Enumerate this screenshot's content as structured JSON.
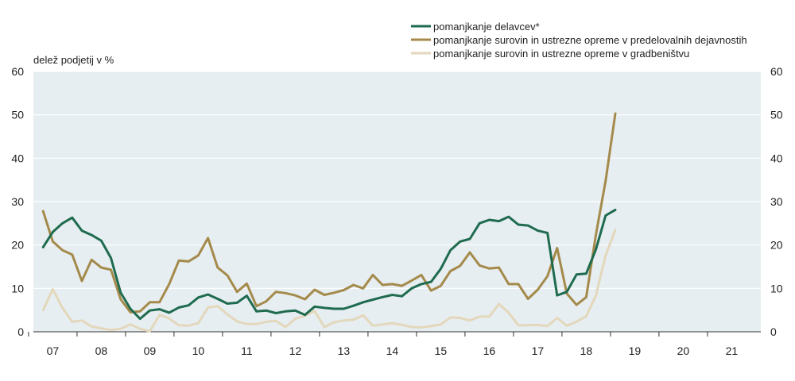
{
  "chart_data": {
    "type": "line",
    "ylabel": "delež podjetij v %",
    "ylim": [
      0,
      60
    ],
    "yticks": [
      0,
      10,
      20,
      30,
      40,
      50,
      60
    ],
    "xlim": [
      2006.6,
      2021.6
    ],
    "xticks": [
      {
        "x": 2007,
        "label": "07"
      },
      {
        "x": 2008,
        "label": "08"
      },
      {
        "x": 2009,
        "label": "09"
      },
      {
        "x": 2010,
        "label": "10"
      },
      {
        "x": 2011,
        "label": "11"
      },
      {
        "x": 2012,
        "label": "12"
      },
      {
        "x": 2013,
        "label": "13"
      },
      {
        "x": 2014,
        "label": "14"
      },
      {
        "x": 2015,
        "label": "15"
      },
      {
        "x": 2016,
        "label": "16"
      },
      {
        "x": 2017,
        "label": "17"
      },
      {
        "x": 2018,
        "label": "18"
      },
      {
        "x": 2019,
        "label": "19"
      },
      {
        "x": 2020,
        "label": "20"
      },
      {
        "x": 2021,
        "label": "21"
      }
    ],
    "grid": true,
    "plot_background": "#e7eef1",
    "legend_position": "top-right",
    "series": [
      {
        "name": "pomanjkanje delavcev*",
        "color": "#1f6b4f",
        "points": [
          [
            2006.8,
            19.5
          ],
          [
            2007.0,
            23
          ],
          [
            2007.2,
            25
          ],
          [
            2007.4,
            26.3
          ],
          [
            2007.6,
            23.3
          ],
          [
            2007.8,
            22.3
          ],
          [
            2008.0,
            21
          ],
          [
            2008.2,
            17
          ],
          [
            2008.4,
            9
          ],
          [
            2008.6,
            5.3
          ],
          [
            2008.8,
            3
          ],
          [
            2009.0,
            4.9
          ],
          [
            2009.2,
            5.2
          ],
          [
            2009.4,
            4.4
          ],
          [
            2009.6,
            5.6
          ],
          [
            2009.8,
            6.1
          ],
          [
            2010.0,
            7.9
          ],
          [
            2010.2,
            8.6
          ],
          [
            2010.4,
            7.6
          ],
          [
            2010.6,
            6.5
          ],
          [
            2010.8,
            6.7
          ],
          [
            2011.0,
            8.3
          ],
          [
            2011.2,
            4.7
          ],
          [
            2011.4,
            4.9
          ],
          [
            2011.6,
            4.3
          ],
          [
            2011.8,
            4.7
          ],
          [
            2012.0,
            4.9
          ],
          [
            2012.2,
            3.9
          ],
          [
            2012.4,
            5.8
          ],
          [
            2012.6,
            5.5
          ],
          [
            2012.8,
            5.3
          ],
          [
            2013.0,
            5.3
          ],
          [
            2013.2,
            6
          ],
          [
            2013.4,
            6.8
          ],
          [
            2013.6,
            7.4
          ],
          [
            2013.8,
            8
          ],
          [
            2014.0,
            8.5
          ],
          [
            2014.2,
            8.2
          ],
          [
            2014.4,
            10
          ],
          [
            2014.6,
            11
          ],
          [
            2014.8,
            11.5
          ],
          [
            2015.0,
            14.5
          ],
          [
            2015.2,
            18.8
          ],
          [
            2015.4,
            20.8
          ],
          [
            2015.6,
            21.4
          ],
          [
            2015.8,
            25
          ],
          [
            2016.0,
            25.8
          ],
          [
            2016.2,
            25.5
          ],
          [
            2016.4,
            26.5
          ],
          [
            2016.6,
            24.7
          ],
          [
            2016.8,
            24.5
          ],
          [
            2017.0,
            23.3
          ],
          [
            2017.2,
            22.8
          ],
          [
            2017.4,
            8.4
          ],
          [
            2017.6,
            9.2
          ],
          [
            2017.8,
            13.2
          ],
          [
            2018.0,
            13.4
          ],
          [
            2018.2,
            19
          ],
          [
            2018.4,
            26.8
          ],
          [
            2018.6,
            28.1
          ]
        ]
      },
      {
        "name": "pomanjkanje surovin in ustrezne opreme v predelovalnih dejavnostih",
        "color": "#a48a4b",
        "points": [
          [
            2006.8,
            27.8
          ],
          [
            2007.0,
            20.8
          ],
          [
            2007.2,
            18.8
          ],
          [
            2007.4,
            17.8
          ],
          [
            2007.6,
            11.7
          ],
          [
            2007.8,
            16.6
          ],
          [
            2008.0,
            14.8
          ],
          [
            2008.2,
            14.3
          ],
          [
            2008.4,
            7.5
          ],
          [
            2008.6,
            4.5
          ],
          [
            2008.8,
            4.7
          ],
          [
            2009.0,
            6.8
          ],
          [
            2009.2,
            6.8
          ],
          [
            2009.4,
            11
          ],
          [
            2009.6,
            16.4
          ],
          [
            2009.8,
            16.2
          ],
          [
            2010.0,
            17.6
          ],
          [
            2010.2,
            21.6
          ],
          [
            2010.4,
            14.8
          ],
          [
            2010.6,
            13
          ],
          [
            2010.8,
            9.2
          ],
          [
            2011.0,
            11.1
          ],
          [
            2011.2,
            5.9
          ],
          [
            2011.4,
            7
          ],
          [
            2011.6,
            9.2
          ],
          [
            2011.8,
            8.9
          ],
          [
            2012.0,
            8.4
          ],
          [
            2012.2,
            7.5
          ],
          [
            2012.4,
            9.7
          ],
          [
            2012.6,
            8.5
          ],
          [
            2012.8,
            9
          ],
          [
            2013.0,
            9.6
          ],
          [
            2013.2,
            10.8
          ],
          [
            2013.4,
            10
          ],
          [
            2013.6,
            13.1
          ],
          [
            2013.8,
            10.8
          ],
          [
            2014.0,
            11
          ],
          [
            2014.2,
            10.6
          ],
          [
            2014.4,
            11.8
          ],
          [
            2014.6,
            13.1
          ],
          [
            2014.8,
            9.5
          ],
          [
            2015.0,
            10.6
          ],
          [
            2015.2,
            14
          ],
          [
            2015.4,
            15.2
          ],
          [
            2015.6,
            18.3
          ],
          [
            2015.8,
            15.3
          ],
          [
            2016.0,
            14.6
          ],
          [
            2016.2,
            14.8
          ],
          [
            2016.4,
            11
          ],
          [
            2016.6,
            11
          ],
          [
            2016.8,
            7.6
          ],
          [
            2017.0,
            9.7
          ],
          [
            2017.2,
            12.8
          ],
          [
            2017.4,
            19.3
          ],
          [
            2017.6,
            8.8
          ],
          [
            2017.8,
            6.2
          ],
          [
            2018.0,
            8
          ],
          [
            2018.2,
            22.4
          ],
          [
            2018.4,
            34.8
          ],
          [
            2018.6,
            50.3
          ]
        ]
      },
      {
        "name": "pomanjkanje surovin in ustrezne opreme v gradbeništvu",
        "color": "#e3d7bc",
        "points": [
          [
            2006.8,
            5
          ],
          [
            2007.0,
            9.8
          ],
          [
            2007.2,
            5.5
          ],
          [
            2007.4,
            2.3
          ],
          [
            2007.6,
            2.6
          ],
          [
            2007.8,
            1.2
          ],
          [
            2008.0,
            0.8
          ],
          [
            2008.2,
            0.4
          ],
          [
            2008.4,
            0.7
          ],
          [
            2008.6,
            1.7
          ],
          [
            2008.8,
            0.7
          ],
          [
            2009.0,
            0.1
          ],
          [
            2009.2,
            3.9
          ],
          [
            2009.4,
            3.1
          ],
          [
            2009.6,
            1.5
          ],
          [
            2009.8,
            1.4
          ],
          [
            2010.0,
            2
          ],
          [
            2010.2,
            5.6
          ],
          [
            2010.4,
            5.9
          ],
          [
            2010.6,
            4
          ],
          [
            2010.8,
            2.4
          ],
          [
            2011.0,
            1.8
          ],
          [
            2011.2,
            1.8
          ],
          [
            2011.4,
            2.3
          ],
          [
            2011.6,
            2.5
          ],
          [
            2011.8,
            1.1
          ],
          [
            2012.0,
            3
          ],
          [
            2012.2,
            3.7
          ],
          [
            2012.4,
            4.8
          ],
          [
            2012.6,
            1.1
          ],
          [
            2012.8,
            2.2
          ],
          [
            2013.0,
            2.6
          ],
          [
            2013.2,
            2.8
          ],
          [
            2013.4,
            3.8
          ],
          [
            2013.6,
            1.4
          ],
          [
            2013.8,
            1.7
          ],
          [
            2014.0,
            2
          ],
          [
            2014.2,
            1.6
          ],
          [
            2014.4,
            1.1
          ],
          [
            2014.6,
            1
          ],
          [
            2014.8,
            1.3
          ],
          [
            2015.0,
            1.7
          ],
          [
            2015.2,
            3.3
          ],
          [
            2015.4,
            3.2
          ],
          [
            2015.6,
            2.6
          ],
          [
            2015.8,
            3.5
          ],
          [
            2016.0,
            3.5
          ],
          [
            2016.2,
            6.4
          ],
          [
            2016.4,
            4.4
          ],
          [
            2016.6,
            1.5
          ],
          [
            2016.8,
            1.5
          ],
          [
            2017.0,
            1.6
          ],
          [
            2017.2,
            1.3
          ],
          [
            2017.4,
            3.2
          ],
          [
            2017.6,
            1.4
          ],
          [
            2017.8,
            2.3
          ],
          [
            2018.0,
            3.6
          ],
          [
            2018.2,
            8.4
          ],
          [
            2018.4,
            17.6
          ],
          [
            2018.6,
            23.5
          ]
        ]
      }
    ]
  }
}
